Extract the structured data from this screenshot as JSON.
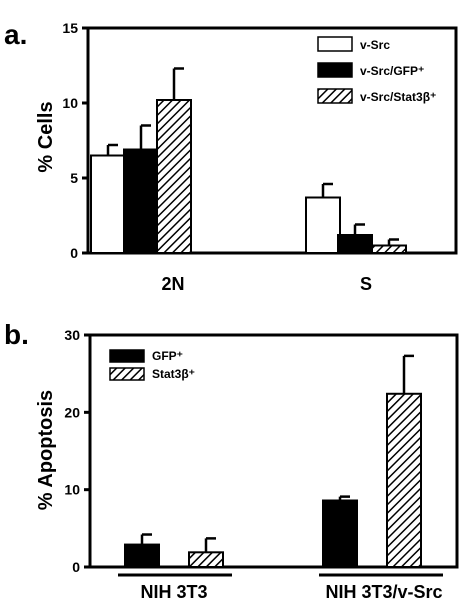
{
  "chart_data": [
    {
      "panel": "a.",
      "type": "bar",
      "ylabel": "% Cells",
      "ylim": [
        0,
        15
      ],
      "yticks": [
        0,
        5,
        10,
        15
      ],
      "categories": [
        "2N",
        "S"
      ],
      "legend_position": "top-right",
      "series": [
        {
          "name": "v-Src",
          "fill": "white",
          "values": [
            6.5,
            3.7
          ],
          "errors": [
            0.7,
            0.9
          ]
        },
        {
          "name": "v-Src/GFP⁺",
          "fill": "black",
          "values": [
            6.9,
            1.2
          ],
          "errors": [
            1.6,
            0.7
          ]
        },
        {
          "name": "v-Src/Stat3β⁺",
          "fill": "hatch",
          "values": [
            10.2,
            0.5
          ],
          "errors": [
            2.1,
            0.4
          ]
        }
      ]
    },
    {
      "panel": "b.",
      "type": "bar",
      "ylabel": "% Apoptosis",
      "ylim": [
        0,
        30
      ],
      "yticks": [
        0,
        10,
        20,
        30
      ],
      "categories": [
        "NIH 3T3",
        "NIH 3T3/v-Src"
      ],
      "legend_position": "top-left",
      "series": [
        {
          "name": "GFP⁺",
          "fill": "black",
          "values": [
            2.9,
            8.6
          ],
          "errors": [
            1.3,
            0.5
          ]
        },
        {
          "name": "Stat3β⁺",
          "fill": "hatch",
          "values": [
            1.9,
            22.4
          ],
          "errors": [
            1.8,
            4.9
          ]
        }
      ]
    }
  ]
}
